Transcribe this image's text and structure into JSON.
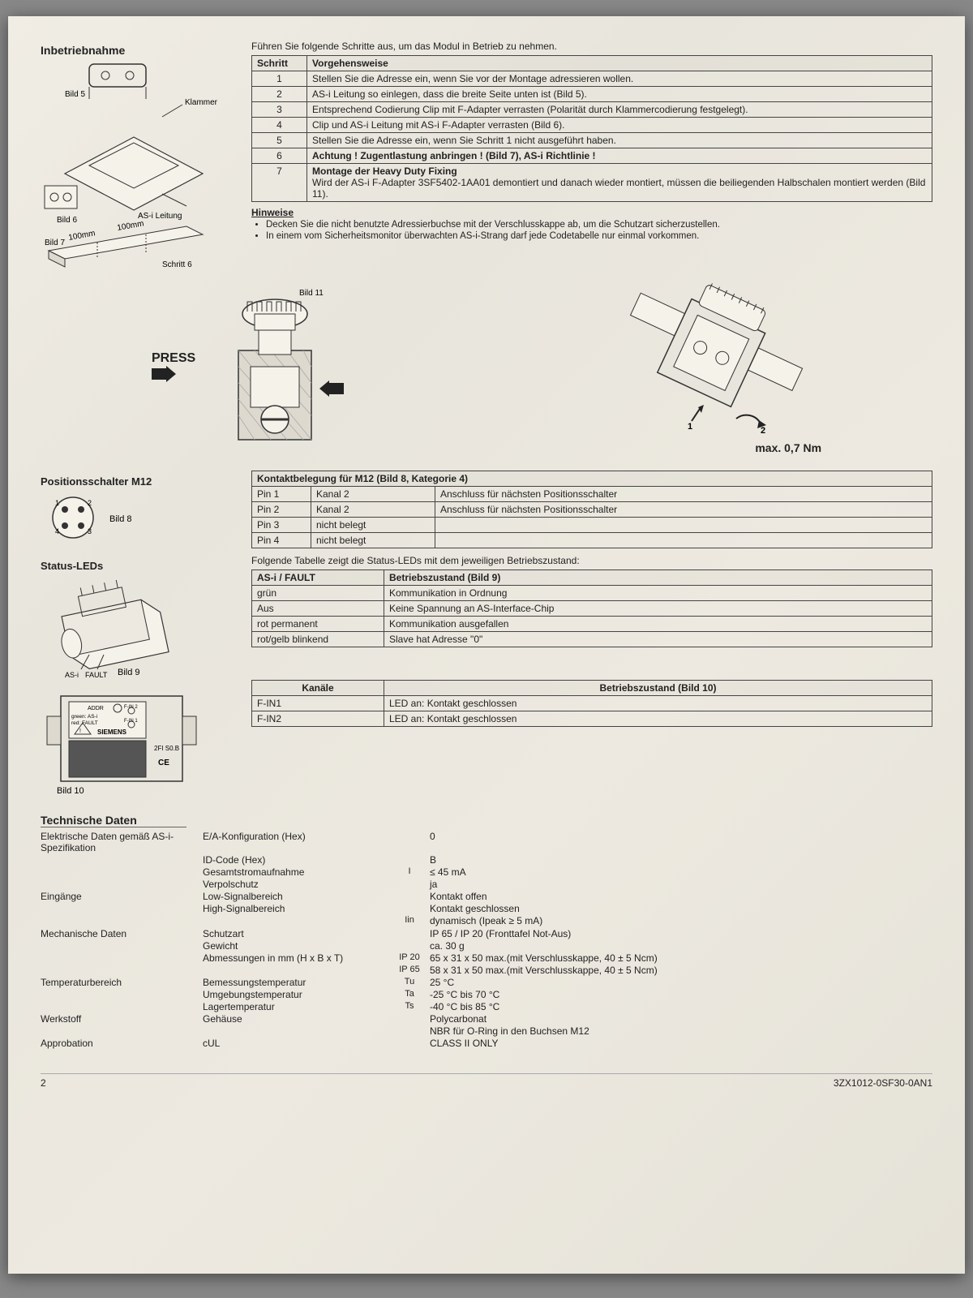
{
  "header": {
    "intro": "Führen Sie folgende Schritte aus, um das Modul in Betrieb zu nehmen."
  },
  "inbetriebnahme": {
    "title": "Inbetriebnahme",
    "labels": {
      "bild5": "Bild 5",
      "bild6": "Bild 6",
      "bild7": "Bild 7",
      "klammer": "Klammer",
      "as_i_leitung": "AS-i Leitung",
      "schritt6": "Schritt 6",
      "d100a": "100mm",
      "d100b": "100mm"
    }
  },
  "steps_table": {
    "headers": [
      "Schritt",
      "Vorgehensweise"
    ],
    "rows": [
      [
        "1",
        "Stellen Sie die Adresse ein, wenn Sie vor der Montage adressieren wollen."
      ],
      [
        "2",
        "AS-i Leitung so einlegen, dass die breite Seite unten ist (Bild 5)."
      ],
      [
        "3",
        "Entsprechend Codierung Clip mit F-Adapter verrasten (Polarität durch Klammercodierung festgelegt)."
      ],
      [
        "4",
        "Clip und AS-i Leitung mit AS-i F-Adapter verrasten (Bild 6)."
      ],
      [
        "5",
        "Stellen Sie die Adresse ein, wenn Sie Schritt 1 nicht ausgeführt haben."
      ],
      [
        "6",
        "Achtung ! Zugentlastung anbringen ! (Bild 7), AS-i Richtlinie !"
      ],
      [
        "7",
        "Montage der Heavy Duty Fixing\nWird der AS-i F-Adapter 3SF5402-1AA01 demontiert und danach wieder montiert, müssen die beiliegenden Halbschalen montiert werden (Bild 11)."
      ]
    ]
  },
  "hinweise": {
    "title": "Hinweise",
    "items": [
      "Decken Sie die nicht benutzte Adressierbuchse mit der Verschlusskappe ab, um die Schutzart sicherzustellen.",
      "In einem vom Sicherheitsmonitor überwachten AS-i-Strang darf jede Codetabelle nur einmal vorkommen."
    ]
  },
  "press_diagram": {
    "press": "PRESS",
    "bild11": "Bild 11",
    "torque": "max. 0,7 Nm",
    "arrow1": "1",
    "arrow2": "2"
  },
  "positionsschalter": {
    "title": "Positionsschalter M12",
    "bild8": "Bild 8",
    "pins": {
      "p1": "1",
      "p2": "2",
      "p3": "3",
      "p4": "4"
    }
  },
  "kontaktbelegung": {
    "caption": "Kontaktbelegung für M12 (Bild 8, Kategorie 4)",
    "rows": [
      [
        "Pin 1",
        "Kanal 2",
        "Anschluss für nächsten Positionsschalter"
      ],
      [
        "Pin 2",
        "Kanal 2",
        "Anschluss für nächsten Positionsschalter"
      ],
      [
        "Pin 3",
        "nicht belegt",
        ""
      ],
      [
        "Pin 4",
        "nicht belegt",
        ""
      ]
    ]
  },
  "status_leds": {
    "title": "Status-LEDs",
    "intro": "Folgende Tabelle zeigt die Status-LEDs mit dem jeweiligen Betriebszustand:",
    "bild9": "Bild 9",
    "bild10": "Bild 10",
    "labels9": {
      "asi": "AS-i",
      "fault": "FAULT"
    },
    "labels10": {
      "addr": "ADDR",
      "green": "green: AS-i",
      "red": "red: FAULT",
      "fin1": "F-IN 1",
      "fin2": "F-IN 2",
      "siemens": "SIEMENS",
      "model": "2FI S0.B",
      "ce": "CE"
    }
  },
  "led_table": {
    "headers": [
      "AS-i / FAULT",
      "Betriebszustand (Bild 9)"
    ],
    "rows": [
      [
        "grün",
        "Kommunikation in Ordnung"
      ],
      [
        "Aus",
        "Keine Spannung an AS-Interface-Chip"
      ],
      [
        "rot permanent",
        "Kommunikation ausgefallen"
      ],
      [
        "rot/gelb blinkend",
        "Slave hat Adresse \"0\""
      ]
    ]
  },
  "kanal_table": {
    "headers": [
      "Kanäle",
      "Betriebszustand (Bild 10)"
    ],
    "rows": [
      [
        "F-IN1",
        "LED an: Kontakt geschlossen"
      ],
      [
        "F-IN2",
        "LED an: Kontakt geschlossen"
      ]
    ]
  },
  "tech_daten": {
    "title": "Technische Daten",
    "rows": [
      {
        "c1": "Elektrische Daten gemäß AS-i-Spezifikation",
        "c2": "E/A-Konfiguration (Hex)",
        "c3": "",
        "c4": "0"
      },
      {
        "c1": "",
        "c2": "ID-Code (Hex)",
        "c3": "",
        "c4": "B"
      },
      {
        "c1": "",
        "c2": "Gesamtstromaufnahme",
        "c3": "I",
        "c4": "≤ 45 mA"
      },
      {
        "c1": "",
        "c2": "Verpolschutz",
        "c3": "",
        "c4": "ja"
      },
      {
        "c1": "Eingänge",
        "c2": "Low-Signalbereich",
        "c3": "",
        "c4": "Kontakt offen"
      },
      {
        "c1": "",
        "c2": "High-Signalbereich",
        "c3": "",
        "c4": "Kontakt geschlossen"
      },
      {
        "c1": "",
        "c2": "",
        "c3": "Iin",
        "c4": "dynamisch (Ipeak ≥ 5 mA)"
      },
      {
        "c1": " ",
        "c2": " ",
        "c3": " ",
        "c4": " "
      },
      {
        "c1": "Mechanische Daten",
        "c2": "Schutzart",
        "c3": "",
        "c4": "IP 65 / IP 20 (Fronttafel Not-Aus)"
      },
      {
        "c1": "",
        "c2": "Gewicht",
        "c3": "",
        "c4": "ca. 30 g"
      },
      {
        "c1": "",
        "c2": "Abmessungen in mm (H x B x T)",
        "c3": "IP 20",
        "c4": "65 x 31 x 50 max.(mit Verschlusskappe, 40 ± 5 Ncm)"
      },
      {
        "c1": "",
        "c2": "",
        "c3": "IP 65",
        "c4": "58 x 31 x 50 max.(mit Verschlusskappe, 40 ± 5 Ncm)"
      },
      {
        "c1": "Temperaturbereich",
        "c2": "Bemessungstemperatur",
        "c3": "Tu",
        "c4": "25 °C"
      },
      {
        "c1": "",
        "c2": "Umgebungstemperatur",
        "c3": "Ta",
        "c4": "-25 °C bis 70 °C"
      },
      {
        "c1": "",
        "c2": "Lagertemperatur",
        "c3": "Ts",
        "c4": "-40 °C bis 85 °C"
      },
      {
        "c1": "Werkstoff",
        "c2": "Gehäuse",
        "c3": "",
        "c4": "Polycarbonat"
      },
      {
        "c1": "",
        "c2": "",
        "c3": "",
        "c4": "NBR für O-Ring in den Buchsen M12"
      },
      {
        "c1": "Approbation",
        "c2": "cUL",
        "c3": "",
        "c4": "CLASS II ONLY"
      }
    ]
  },
  "footer": {
    "page": "2",
    "doc_no": "3ZX1012-0SF30-0AN1"
  }
}
